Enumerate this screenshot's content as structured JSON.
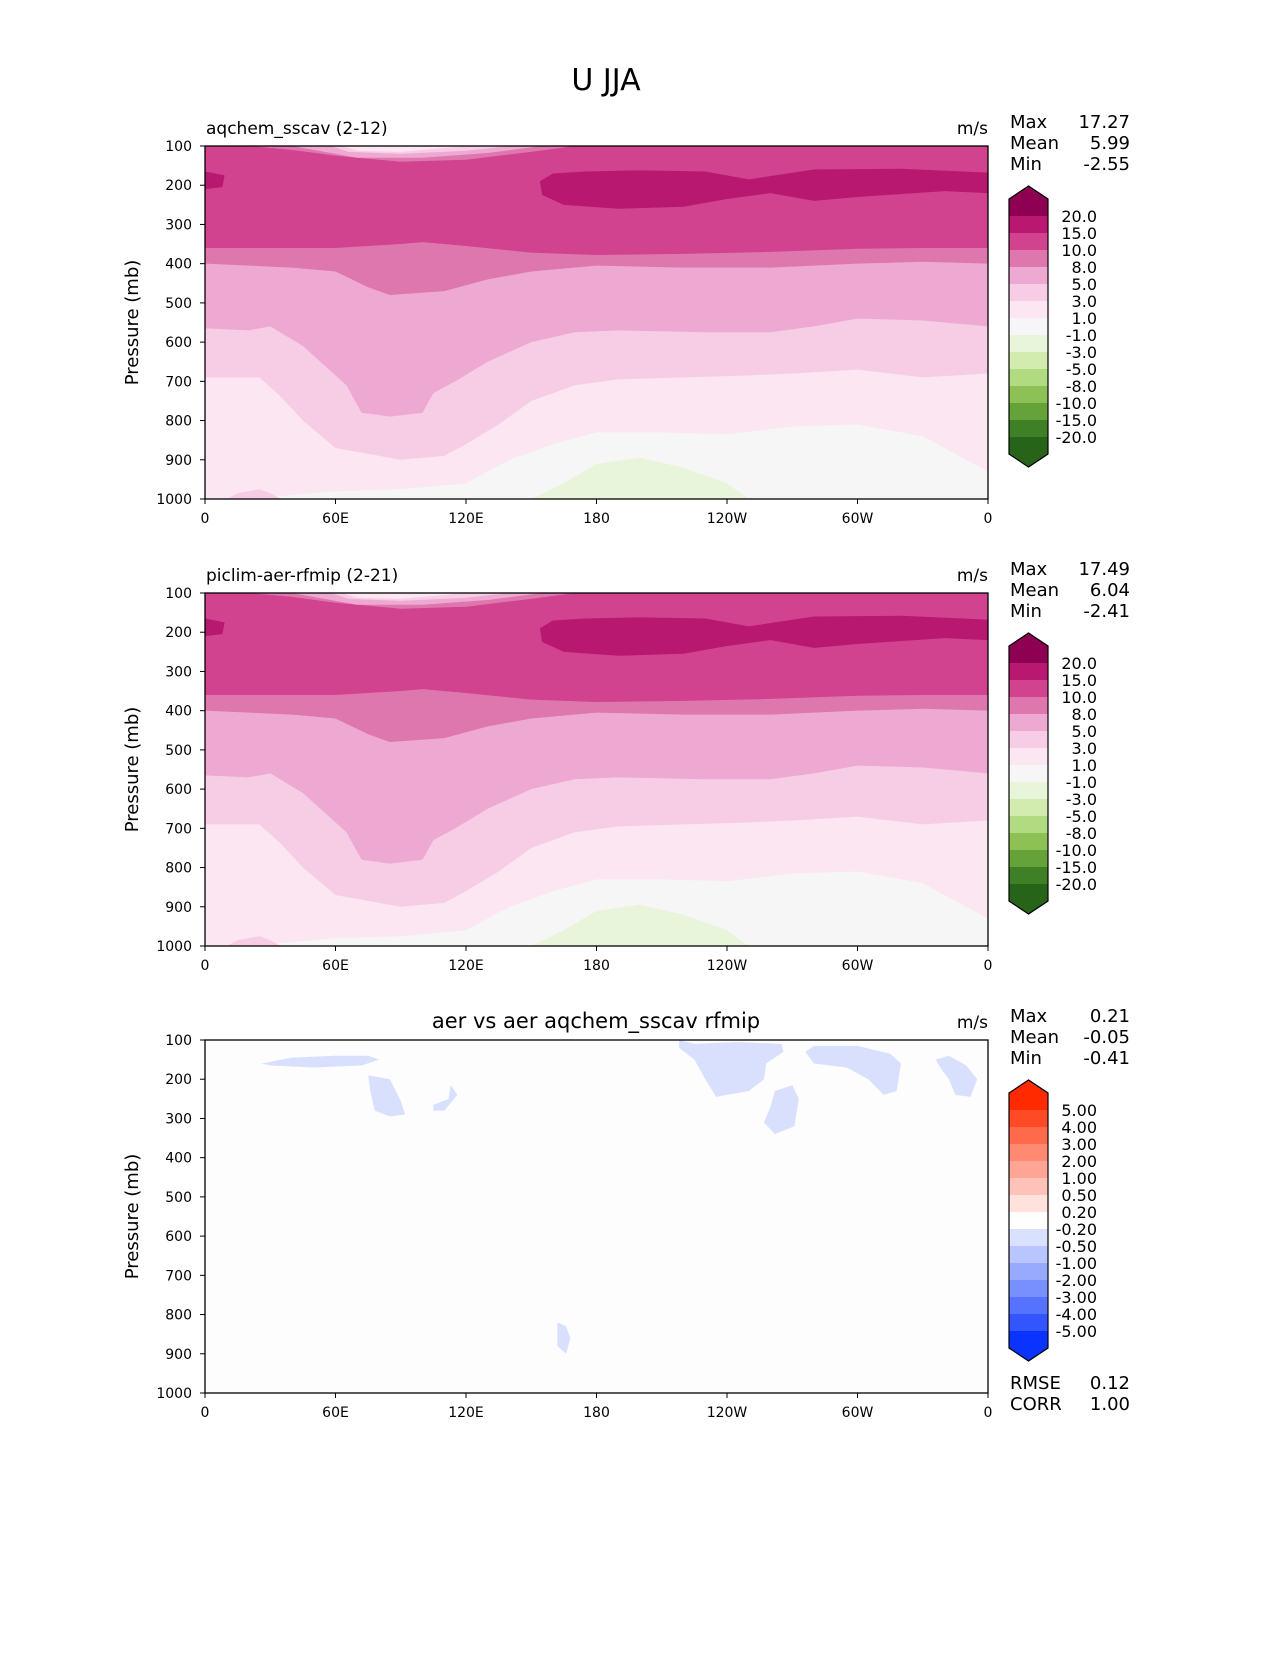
{
  "figure_title": "U JJA",
  "chart_data": [
    {
      "type": "contour",
      "title": "aqchem_sscav (2-12)",
      "units": "m/s",
      "ylabel": "Pressure (mb)",
      "yticks": [
        "100",
        "200",
        "300",
        "400",
        "500",
        "600",
        "700",
        "800",
        "900",
        "1000"
      ],
      "xticks": [
        "0",
        "60E",
        "120E",
        "180",
        "120W",
        "60W",
        "0"
      ],
      "xlim": [
        0,
        360
      ],
      "ylim": [
        1000,
        100
      ],
      "stats": {
        "max_label": "Max",
        "max": "17.27",
        "mean_label": "Mean",
        "mean": "5.99",
        "min_label": "Min",
        "min": "-2.55"
      },
      "colorbar": {
        "labels": [
          "20.0",
          "15.0",
          "10.0",
          "8.0",
          "5.0",
          "3.0",
          "1.0",
          "-1.0",
          "-3.0",
          "-5.0",
          "-8.0",
          "-10.0",
          "-15.0",
          "-20.0"
        ],
        "colors": [
          "#8e0152",
          "#b8186f",
          "#d1428f",
          "#de77ae",
          "#eda9d2",
          "#f7cde5",
          "#fbe6f1",
          "#f6f6f6",
          "#e8f5da",
          "#d2ecb0",
          "#b0db80",
          "#8dc155",
          "#65a33a",
          "#3f7f25",
          "#276419"
        ]
      },
      "contours": [
        {
          "color": "#f6f6f6",
          "fill": "all"
        },
        {
          "color": "#fbe6f1",
          "above": [
            [
              0,
              1000
            ],
            [
              30,
              995
            ],
            [
              60,
              980
            ],
            [
              90,
              975
            ],
            [
              120,
              960
            ],
            [
              140,
              900
            ],
            [
              160,
              860
            ],
            [
              180,
              830
            ],
            [
              210,
              830
            ],
            [
              240,
              835
            ],
            [
              270,
              815
            ],
            [
              300,
              810
            ],
            [
              330,
              840
            ],
            [
              360,
              930
            ]
          ]
        },
        {
          "color": "#e8f5da",
          "poly": [
            [
              150,
              1000
            ],
            [
              165,
              960
            ],
            [
              180,
              910
            ],
            [
              200,
              895
            ],
            [
              220,
              920
            ],
            [
              240,
              960
            ],
            [
              250,
              1000
            ]
          ]
        },
        {
          "color": "#f7cde5",
          "above": [
            [
              0,
              690
            ],
            [
              25,
              690
            ],
            [
              35,
              740
            ],
            [
              45,
              800
            ],
            [
              60,
              870
            ],
            [
              90,
              900
            ],
            [
              110,
              890
            ],
            [
              120,
              860
            ],
            [
              135,
              810
            ],
            [
              150,
              750
            ],
            [
              170,
              710
            ],
            [
              190,
              695
            ],
            [
              220,
              690
            ],
            [
              250,
              685
            ],
            [
              270,
              680
            ],
            [
              300,
              670
            ],
            [
              330,
              690
            ],
            [
              360,
              680
            ]
          ]
        },
        {
          "color": "#eda9d2",
          "above": [
            [
              0,
              565
            ],
            [
              20,
              570
            ],
            [
              30,
              560
            ],
            [
              45,
              610
            ],
            [
              55,
              660
            ],
            [
              65,
              710
            ],
            [
              72,
              780
            ],
            [
              85,
              790
            ],
            [
              100,
              780
            ],
            [
              105,
              730
            ],
            [
              115,
              700
            ],
            [
              130,
              650
            ],
            [
              150,
              600
            ],
            [
              170,
              575
            ],
            [
              190,
              570
            ],
            [
              230,
              575
            ],
            [
              260,
              575
            ],
            [
              280,
              560
            ],
            [
              300,
              540
            ],
            [
              330,
              545
            ],
            [
              360,
              560
            ]
          ]
        },
        {
          "color": "#de77ae",
          "above": [
            [
              0,
              400
            ],
            [
              40,
              410
            ],
            [
              60,
              420
            ],
            [
              75,
              460
            ],
            [
              85,
              480
            ],
            [
              110,
              470
            ],
            [
              130,
              440
            ],
            [
              150,
              420
            ],
            [
              180,
              405
            ],
            [
              220,
              410
            ],
            [
              260,
              410
            ],
            [
              300,
              400
            ],
            [
              330,
              395
            ],
            [
              360,
              400
            ]
          ]
        },
        {
          "color": "#d1428f",
          "above": [
            [
              0,
              360
            ],
            [
              30,
              360
            ],
            [
              60,
              360
            ],
            [
              90,
              350
            ],
            [
              100,
              345
            ],
            [
              120,
              355
            ],
            [
              150,
              372
            ],
            [
              180,
              378
            ],
            [
              220,
              375
            ],
            [
              260,
              370
            ],
            [
              300,
              362
            ],
            [
              330,
              360
            ],
            [
              360,
              360
            ]
          ]
        },
        {
          "color": "#b8186f",
          "poly": [
            [
              154,
              190
            ],
            [
              160,
              170
            ],
            [
              175,
              165
            ],
            [
              200,
              162
            ],
            [
              230,
              165
            ],
            [
              250,
              185
            ],
            [
              262,
              175
            ],
            [
              280,
              160
            ],
            [
              320,
              158
            ],
            [
              360,
              168
            ],
            [
              360,
              220
            ],
            [
              340,
              215
            ],
            [
              300,
              230
            ],
            [
              280,
              240
            ],
            [
              260,
              220
            ],
            [
              240,
              235
            ],
            [
              220,
              255
            ],
            [
              190,
              260
            ],
            [
              165,
              250
            ],
            [
              155,
              225
            ]
          ]
        },
        {
          "color": "#b8186f",
          "poly": [
            [
              0,
              165
            ],
            [
              9,
              175
            ],
            [
              8,
              205
            ],
            [
              0,
              210
            ]
          ]
        },
        {
          "color": "#de77ae",
          "poly": [
            [
              20,
              100
            ],
            [
              40,
              110
            ],
            [
              60,
              125
            ],
            [
              90,
              140
            ],
            [
              120,
              135
            ],
            [
              150,
              115
            ],
            [
              170,
              100
            ]
          ]
        },
        {
          "color": "#eda9d2",
          "poly": [
            [
              40,
              100
            ],
            [
              55,
              115
            ],
            [
              70,
              130
            ],
            [
              100,
              130
            ],
            [
              130,
              118
            ],
            [
              155,
              100
            ]
          ]
        },
        {
          "color": "#f7cde5",
          "poly": [
            [
              58,
              100
            ],
            [
              66,
              115
            ],
            [
              90,
              120
            ],
            [
              120,
              112
            ],
            [
              140,
              100
            ]
          ]
        },
        {
          "color": "#fbe6f1",
          "poly": [
            [
              63,
              100
            ],
            [
              70,
              112
            ],
            [
              90,
              115
            ],
            [
              110,
              105
            ],
            [
              120,
              100
            ]
          ]
        },
        {
          "color": "#f7cde5",
          "poly": [
            [
              10,
              1000
            ],
            [
              15,
              985
            ],
            [
              25,
              975
            ],
            [
              30,
              985
            ],
            [
              35,
              1000
            ]
          ]
        }
      ]
    },
    {
      "type": "contour",
      "title": "piclim-aer-rfmip (2-21)",
      "units": "m/s",
      "ylabel": "Pressure (mb)",
      "yticks": [
        "100",
        "200",
        "300",
        "400",
        "500",
        "600",
        "700",
        "800",
        "900",
        "1000"
      ],
      "xticks": [
        "0",
        "60E",
        "120E",
        "180",
        "120W",
        "60W",
        "0"
      ],
      "xlim": [
        0,
        360
      ],
      "ylim": [
        1000,
        100
      ],
      "stats": {
        "max_label": "Max",
        "max": "17.49",
        "mean_label": "Mean",
        "mean": "6.04",
        "min_label": "Min",
        "min": "-2.41"
      },
      "colorbar": {
        "labels": [
          "20.0",
          "15.0",
          "10.0",
          "8.0",
          "5.0",
          "3.0",
          "1.0",
          "-1.0",
          "-3.0",
          "-5.0",
          "-8.0",
          "-10.0",
          "-15.0",
          "-20.0"
        ],
        "colors": [
          "#8e0152",
          "#b8186f",
          "#d1428f",
          "#de77ae",
          "#eda9d2",
          "#f7cde5",
          "#fbe6f1",
          "#f6f6f6",
          "#e8f5da",
          "#d2ecb0",
          "#b0db80",
          "#8dc155",
          "#65a33a",
          "#3f7f25",
          "#276419"
        ]
      },
      "contours_same_as": 0
    },
    {
      "type": "contour",
      "title": "aer vs aer aqchem_sscav rfmip",
      "units": "m/s",
      "ylabel": "Pressure (mb)",
      "yticks": [
        "100",
        "200",
        "300",
        "400",
        "500",
        "600",
        "700",
        "800",
        "900",
        "1000"
      ],
      "xticks": [
        "0",
        "60E",
        "120E",
        "180",
        "120W",
        "60W",
        "0"
      ],
      "xlim": [
        0,
        360
      ],
      "ylim": [
        1000,
        100
      ],
      "stats": {
        "max_label": "Max",
        "max": "0.21",
        "mean_label": "Mean",
        "mean": "-0.05",
        "min_label": "Min",
        "min": "-0.41"
      },
      "extra_stats": {
        "rmse_label": "RMSE",
        "rmse": "0.12",
        "corr_label": "CORR",
        "corr": "1.00"
      },
      "colorbar": {
        "labels": [
          "5.00",
          "4.00",
          "3.00",
          "2.00",
          "1.00",
          "0.50",
          "0.20",
          "-0.20",
          "-0.50",
          "-1.00",
          "-2.00",
          "-3.00",
          "-4.00",
          "-5.00"
        ],
        "colors": [
          "#ff2a00",
          "#ff4a26",
          "#ff6a4a",
          "#ff8a72",
          "#ffa596",
          "#ffc2b8",
          "#ffe2dc",
          "#fefefe",
          "#dae1fe",
          "#b8c5fe",
          "#98aafe",
          "#7790fe",
          "#5573fe",
          "#3355fe",
          "#0a33fe"
        ]
      },
      "contours": [
        {
          "color": "#fdfdfd",
          "fill": "all"
        },
        {
          "color": "#d8e0fe",
          "poly": [
            [
              26,
              160
            ],
            [
              40,
              145
            ],
            [
              60,
              140
            ],
            [
              75,
              140
            ],
            [
              80,
              150
            ],
            [
              72,
              165
            ],
            [
              50,
              170
            ],
            [
              30,
              165
            ]
          ]
        },
        {
          "color": "#d8e0fe",
          "poly": [
            [
              75,
              190
            ],
            [
              85,
              200
            ],
            [
              90,
              255
            ],
            [
              92,
              290
            ],
            [
              85,
              295
            ],
            [
              78,
              280
            ],
            [
              76,
              230
            ]
          ]
        },
        {
          "color": "#d8e0fe",
          "poly": [
            [
              105,
              265
            ],
            [
              112,
              250
            ],
            [
              113,
              215
            ],
            [
              116,
              240
            ],
            [
              110,
              280
            ],
            [
              105,
              280
            ]
          ]
        },
        {
          "color": "#d8e0fe",
          "poly": [
            [
              218,
              100
            ],
            [
              225,
              110
            ],
            [
              245,
              105
            ],
            [
              265,
              110
            ],
            [
              266,
              130
            ],
            [
              258,
              160
            ],
            [
              257,
              200
            ],
            [
              250,
              230
            ],
            [
              235,
              245
            ],
            [
              230,
              200
            ],
            [
              225,
              150
            ],
            [
              218,
              120
            ]
          ]
        },
        {
          "color": "#d8e0fe",
          "poly": [
            [
              262,
              230
            ],
            [
              270,
              215
            ],
            [
              273,
              250
            ],
            [
              271,
              320
            ],
            [
              262,
              340
            ],
            [
              257,
              310
            ],
            [
              260,
              270
            ]
          ]
        },
        {
          "color": "#d8e0fe",
          "poly": [
            [
              276,
              130
            ],
            [
              280,
              115
            ],
            [
              300,
              115
            ],
            [
              315,
              135
            ],
            [
              320,
              160
            ],
            [
              318,
              230
            ],
            [
              312,
              240
            ],
            [
              305,
              200
            ],
            [
              295,
              170
            ],
            [
              280,
              160
            ]
          ]
        },
        {
          "color": "#d8e0fe",
          "poly": [
            [
              336,
              150
            ],
            [
              342,
              140
            ],
            [
              350,
              165
            ],
            [
              355,
              200
            ],
            [
              352,
              245
            ],
            [
              345,
              240
            ],
            [
              342,
              200
            ],
            [
              338,
              170
            ]
          ]
        },
        {
          "color": "#d8e0fe",
          "poly": [
            [
              162,
              820
            ],
            [
              166,
              830
            ],
            [
              168,
              860
            ],
            [
              166,
              900
            ],
            [
              162,
              880
            ]
          ]
        }
      ]
    }
  ]
}
